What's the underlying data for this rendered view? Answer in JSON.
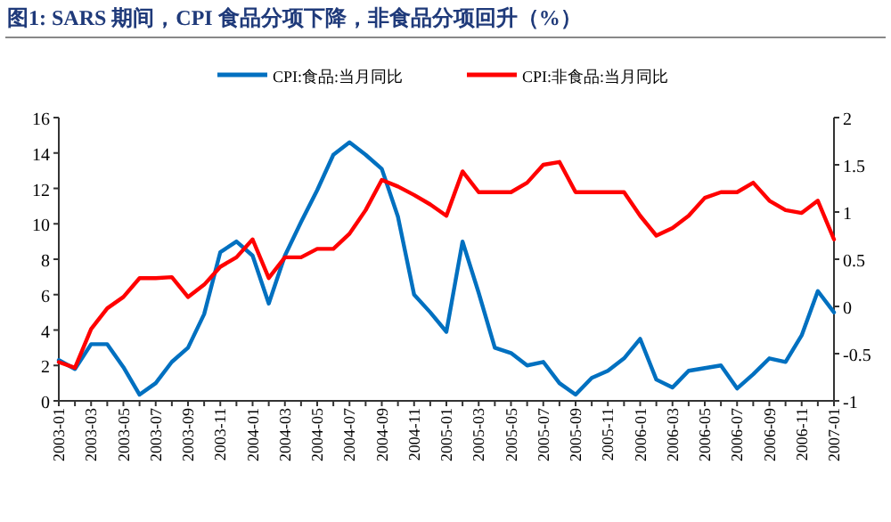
{
  "chart_data": {
    "type": "line",
    "title": "图1:  SARS 期间，CPI 食品分项下降，非食品分项回升（%）",
    "categories": [
      "2003-01",
      null,
      "2003-03",
      null,
      "2003-05",
      null,
      "2003-07",
      null,
      "2003-09",
      null,
      "2003-11",
      null,
      "2004-01",
      null,
      "2004-03",
      null,
      "2004-05",
      null,
      "2004-07",
      null,
      "2004-09",
      null,
      "2004-11",
      null,
      "2005-01",
      null,
      "2005-03",
      null,
      "2005-05",
      null,
      "2005-07",
      null,
      "2005-09",
      null,
      "2005-11",
      null,
      "2006-01",
      null,
      "2006-03",
      null,
      "2006-05",
      null,
      "2006-07",
      null,
      "2006-09",
      null,
      "2006-11",
      null,
      "2007-01"
    ],
    "series": [
      {
        "name": "CPI:食品:当月同比",
        "color": "#0070c0",
        "values": [
          2.3,
          1.8,
          3.2,
          3.2,
          1.9,
          0.35,
          1.0,
          2.2,
          3.0,
          4.9,
          8.4,
          9.0,
          8.2,
          5.5,
          8.2,
          10.1,
          11.9,
          13.9,
          14.6,
          13.9,
          13.1,
          10.4,
          6.0,
          5.0,
          3.9,
          9.0,
          6.1,
          3.0,
          2.7,
          2.0,
          2.2,
          1.0,
          0.35,
          1.3,
          1.7,
          2.4,
          3.5,
          1.2,
          0.75,
          1.7,
          1.85,
          2.0,
          0.7,
          1.5,
          2.4,
          2.2,
          3.7,
          6.2,
          5.0
        ]
      },
      {
        "name": "CPI:非食品:当月同比",
        "color": "#ff0000",
        "axis": "y2",
        "values": [
          -0.59,
          -0.65,
          -0.24,
          -0.02,
          0.1,
          0.3,
          0.3,
          0.31,
          0.1,
          0.23,
          0.42,
          0.52,
          0.71,
          0.3,
          0.52,
          0.52,
          0.61,
          0.61,
          0.77,
          1.02,
          1.34,
          1.27,
          1.18,
          1.08,
          0.96,
          1.43,
          1.21,
          1.21,
          1.21,
          1.31,
          1.5,
          1.53,
          1.21,
          1.21,
          1.21,
          1.21,
          0.96,
          0.75,
          0.83,
          0.96,
          1.15,
          1.21,
          1.21,
          1.31,
          1.12,
          1.02,
          0.99,
          1.12,
          0.71
        ]
      }
    ],
    "ylim": [
      0,
      16
    ],
    "yticks": [
      0,
      2,
      4,
      6,
      8,
      10,
      12,
      14,
      16
    ],
    "y2lim": [
      -1,
      2
    ],
    "y2ticks": [
      -1,
      -0.5,
      0,
      0.5,
      1,
      1.5,
      2
    ],
    "legend": "top"
  }
}
